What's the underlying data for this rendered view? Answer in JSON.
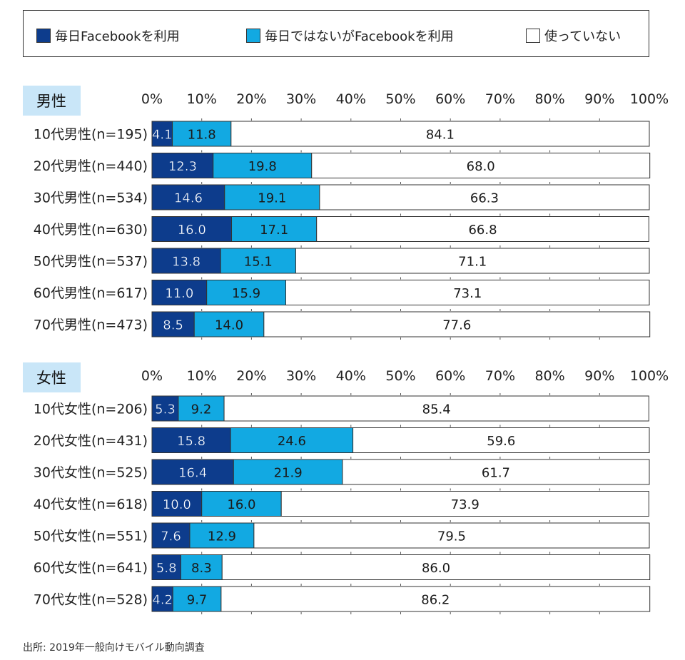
{
  "legend": {
    "items": [
      {
        "label": "毎日Facebookを利用",
        "color": "#0d3c8c"
      },
      {
        "label": "毎日ではないがFacebookを利用",
        "color": "#12a9e2"
      },
      {
        "label": "使っていない",
        "color": "#ffffff"
      }
    ]
  },
  "source": "出所: 2019年一般向けモバイル動向調査",
  "chart_data": [
    {
      "type": "bar",
      "orientation": "horizontal",
      "stacked": "percent",
      "panel_label": "男性",
      "xlim": [
        0,
        100
      ],
      "ticks": [
        "0%",
        "10%",
        "20%",
        "30%",
        "40%",
        "50%",
        "60%",
        "70%",
        "80%",
        "90%",
        "100%"
      ],
      "categories": [
        "10代男性(n=195)",
        "20代男性(n=440)",
        "30代男性(n=534)",
        "40代男性(n=630)",
        "50代男性(n=537)",
        "60代男性(n=617)",
        "70代男性(n=473)"
      ],
      "series": [
        {
          "name": "毎日Facebookを利用",
          "values": [
            "4.1",
            "12.3",
            "14.6",
            "16.0",
            "13.8",
            "11.0",
            "8.5"
          ]
        },
        {
          "name": "毎日ではないがFacebookを利用",
          "values": [
            "11.8",
            "19.8",
            "19.1",
            "17.1",
            "15.1",
            "15.9",
            "14.0"
          ]
        },
        {
          "name": "使っていない",
          "values": [
            "84.1",
            "68.0",
            "66.3",
            "66.8",
            "71.1",
            "73.1",
            "77.6"
          ]
        }
      ]
    },
    {
      "type": "bar",
      "orientation": "horizontal",
      "stacked": "percent",
      "panel_label": "女性",
      "xlim": [
        0,
        100
      ],
      "ticks": [
        "0%",
        "10%",
        "20%",
        "30%",
        "40%",
        "50%",
        "60%",
        "70%",
        "80%",
        "90%",
        "100%"
      ],
      "categories": [
        "10代女性(n=206)",
        "20代女性(n=431)",
        "30代女性(n=525)",
        "40代女性(n=618)",
        "50代女性(n=551)",
        "60代女性(n=641)",
        "70代女性(n=528)"
      ],
      "series": [
        {
          "name": "毎日Facebookを利用",
          "values": [
            "5.3",
            "15.8",
            "16.4",
            "10.0",
            "7.6",
            "5.8",
            "4.2"
          ]
        },
        {
          "name": "毎日ではないがFacebookを利用",
          "values": [
            "9.2",
            "24.6",
            "21.9",
            "16.0",
            "12.9",
            "8.3",
            "9.7"
          ]
        },
        {
          "name": "使っていない",
          "values": [
            "85.4",
            "59.6",
            "61.7",
            "73.9",
            "79.5",
            "86.0",
            "86.2"
          ]
        }
      ]
    }
  ]
}
